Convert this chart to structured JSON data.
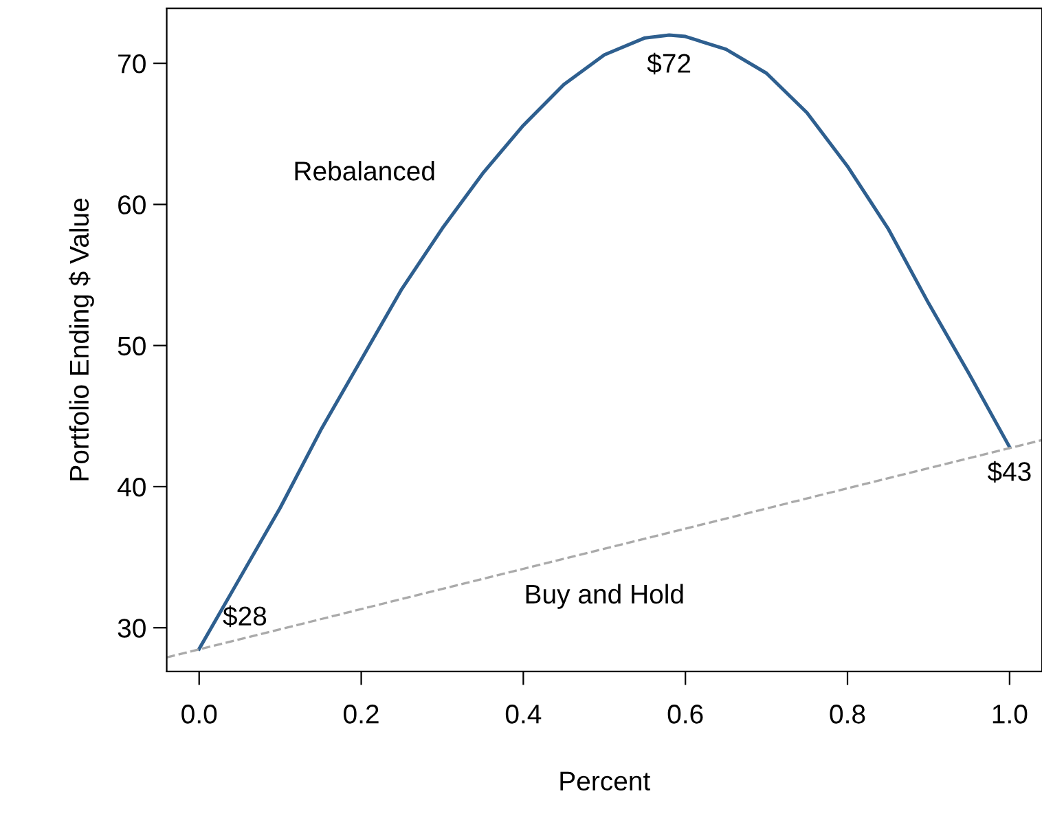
{
  "chart_data": {
    "type": "line",
    "xlabel": "Percent",
    "ylabel": "Portfolio Ending $ Value",
    "xlim": [
      -0.04,
      1.04
    ],
    "ylim": [
      26.9,
      73.9
    ],
    "xticks": [
      {
        "value": 0,
        "label": "0.0"
      },
      0.2,
      0.4,
      0.6,
      0.8,
      {
        "value": 1,
        "label": "1.0"
      }
    ],
    "yticks": [
      30,
      40,
      50,
      60,
      70
    ],
    "grid": false,
    "marker": "none",
    "series": [
      {
        "name": "Rebalanced",
        "color": "#2e5f8f",
        "line_style": "solid",
        "x": [
          0,
          0.05,
          0.1,
          0.15,
          0.2,
          0.25,
          0.3,
          0.35,
          0.4,
          0.45,
          0.5,
          0.55,
          0.58,
          0.6,
          0.65,
          0.7,
          0.75,
          0.8,
          0.85,
          0.9,
          0.95,
          1.0
        ],
        "values": [
          28.5,
          33.5,
          38.5,
          44,
          49,
          54,
          58.3,
          62.2,
          65.6,
          68.5,
          70.6,
          71.8,
          72,
          71.9,
          71,
          69.3,
          66.5,
          62.7,
          58.3,
          53,
          48,
          42.8
        ]
      },
      {
        "name": "Buy and Hold",
        "color": "#aaaaaa",
        "line_style": "dashed",
        "x": [
          -0.04,
          1.04
        ],
        "values": [
          27.9,
          43.3
        ]
      }
    ],
    "annotations": [
      {
        "text": "$28",
        "x": 0,
        "y": 28.5
      },
      {
        "text": "$72",
        "x": 0.58,
        "y": 72
      },
      {
        "text": "$43",
        "x": 1,
        "y": 42.8
      }
    ]
  }
}
